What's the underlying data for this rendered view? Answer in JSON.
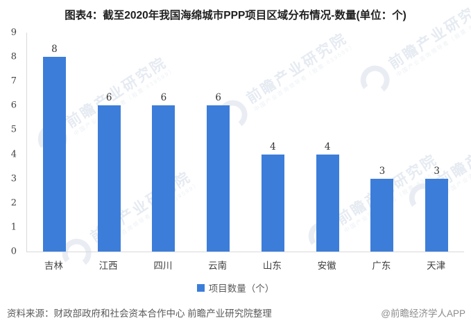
{
  "title": "图表4：截至2020年我国海绵城市PPP项目区域分布情况-数量(单位：个)",
  "chart_data": {
    "type": "bar",
    "title": "图表4：截至2020年我国海绵城市PPP项目区域分布情况-数量(单位：个)",
    "categories": [
      "吉林",
      "江西",
      "四川",
      "云南",
      "山东",
      "安徽",
      "广东",
      "天津"
    ],
    "series": [
      {
        "name": "项目数量（个）",
        "values": [
          8,
          6,
          6,
          6,
          4,
          4,
          3,
          3
        ]
      }
    ],
    "data_labels": [
      "8",
      "6",
      "6",
      "6",
      "4",
      "4",
      "3",
      "3"
    ],
    "xlabel": "",
    "ylabel": "",
    "ylim": [
      0,
      9
    ],
    "yticks": [
      0,
      1,
      2,
      3,
      4,
      5,
      6,
      7,
      8,
      9
    ],
    "grid": false,
    "legend_position": "bottom",
    "bar_color": "#3c7dd9"
  },
  "legend": {
    "label": "项目数量（个）",
    "marker_color": "#3c7dd9"
  },
  "footer": {
    "source": "资料来源：财政部政府和社会资本合作中心 前瞻产业研究院整理",
    "credit": "@前瞻经济学人APP"
  },
  "watermark": {
    "text": "前瞻产业研究院",
    "subtext": "中国产业咨询领导者（股票:839599）"
  },
  "colors": {
    "bar": "#3c7dd9",
    "axis_line": "#d9d9d9",
    "title_text": "#1f1f1f",
    "axis_text": "#404040",
    "legend_text": "#595959",
    "source_text": "#595959",
    "credit_text": "#8c8c8c",
    "watermark_text": "#e6ebf2",
    "background": "#ffffff"
  }
}
